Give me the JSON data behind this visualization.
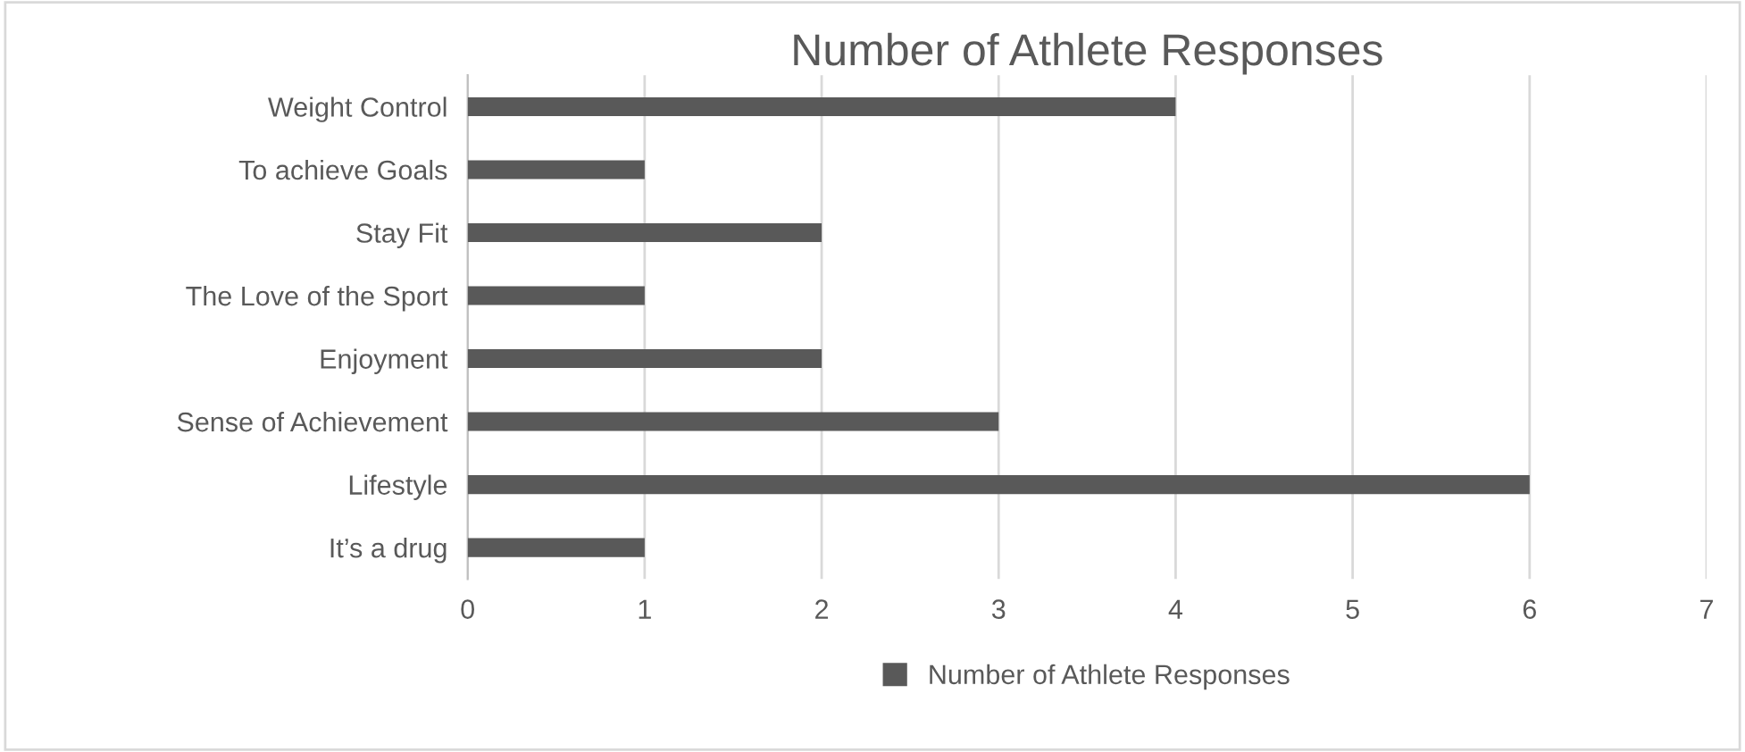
{
  "chart_data": {
    "type": "bar",
    "orientation": "horizontal",
    "title": "Number of Athlete Responses",
    "categories": [
      "Weight Control",
      "To achieve Goals",
      "Stay Fit",
      "The Love of the Sport",
      "Enjoyment",
      "Sense of Achievement",
      "Lifestyle",
      "It’s a drug"
    ],
    "series": [
      {
        "name": "Number of Athlete Responses",
        "color": "#595959",
        "values": [
          4,
          1,
          2,
          1,
          2,
          3,
          6,
          1
        ]
      }
    ],
    "xlim": [
      0,
      7
    ],
    "xticks": [
      0,
      1,
      2,
      3,
      4,
      5,
      6,
      7
    ],
    "grid": "x",
    "legend": "bottom"
  }
}
